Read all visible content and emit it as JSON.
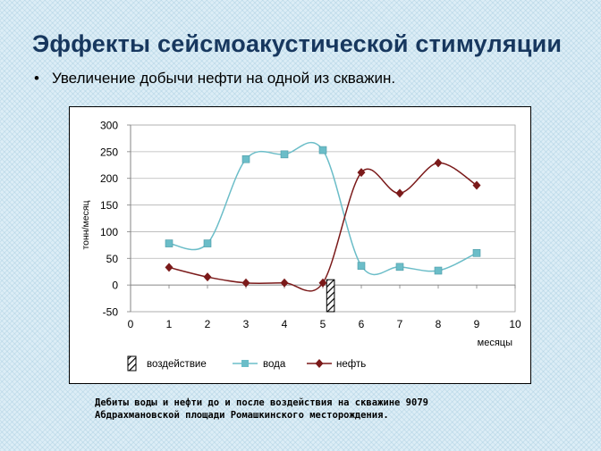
{
  "slide": {
    "title": "Эффекты сейсмоакустической стимуляции",
    "bullet_glyph": "•",
    "bullet_text": "Увеличение добычи нефти на одной из скважин.",
    "caption_line1": "Дебиты воды и нефти до и после воздействия на скважине 9079",
    "caption_line2": "Абдрахмановской площади Ромашкинского месторождения."
  },
  "chart_data": {
    "type": "line",
    "xlabel": "месяцы",
    "ylabel": "тонн/месяц",
    "xlim": [
      0,
      10
    ],
    "ylim": [
      -50,
      300
    ],
    "x_ticks": [
      0,
      1,
      2,
      3,
      4,
      5,
      6,
      7,
      8,
      9,
      10
    ],
    "y_ticks": [
      -50,
      0,
      50,
      100,
      150,
      200,
      250,
      300
    ],
    "grid": true,
    "legend_position": "bottom",
    "series": [
      {
        "name": "вода",
        "color": "#6bbdc8",
        "marker": "square",
        "x": [
          1,
          2,
          3,
          4,
          5,
          6,
          7,
          8,
          9
        ],
        "values": [
          78,
          78,
          236,
          245,
          253,
          36,
          34,
          27,
          60
        ]
      },
      {
        "name": "нефть",
        "color": "#7b1a1a",
        "marker": "diamond",
        "x": [
          1,
          2,
          3,
          4,
          5,
          6,
          7,
          8,
          9
        ],
        "values": [
          33,
          15,
          4,
          4,
          4,
          211,
          172,
          229,
          187
        ]
      }
    ],
    "event": {
      "name": "воздействие",
      "x_range": [
        5.1,
        5.3
      ],
      "y_range": [
        -50,
        10
      ]
    }
  }
}
